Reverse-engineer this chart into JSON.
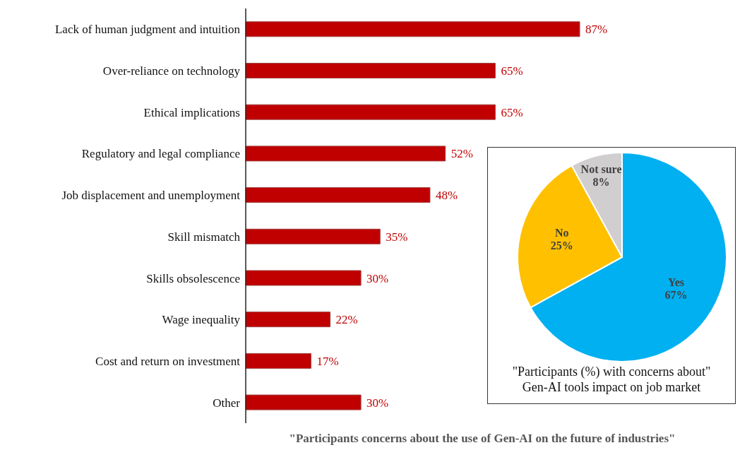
{
  "chart_data": [
    {
      "type": "bar",
      "orientation": "horizontal",
      "title": "\"Participants concerns about the use of Gen-AI on the future of industries\"",
      "categories": [
        "Lack of human judgment and intuition",
        "Over-reliance on technology",
        "Ethical implications",
        "Regulatory and legal compliance",
        "Job displacement and unemployment",
        "Skill mismatch",
        "Skills obsolescence",
        "Wage inequality",
        "Cost and return on investment",
        "Other"
      ],
      "values": [
        87,
        65,
        65,
        52,
        48,
        35,
        30,
        22,
        17,
        30
      ],
      "value_labels": [
        "87%",
        "65%",
        "65%",
        "52%",
        "48%",
        "35%",
        "30%",
        "22%",
        "17%",
        "30%"
      ],
      "color": "#c00000"
    },
    {
      "type": "pie",
      "title": "\"Participants (%) with concerns about\"",
      "subtitle": "Gen-AI tools impact on job market",
      "categories": [
        "Yes",
        "No",
        "Not sure"
      ],
      "values": [
        67,
        25,
        8
      ],
      "value_labels": [
        "67%",
        "25%",
        "8%"
      ],
      "colors": [
        "#00b0f0",
        "#ffc000",
        "#d0cece"
      ]
    }
  ]
}
